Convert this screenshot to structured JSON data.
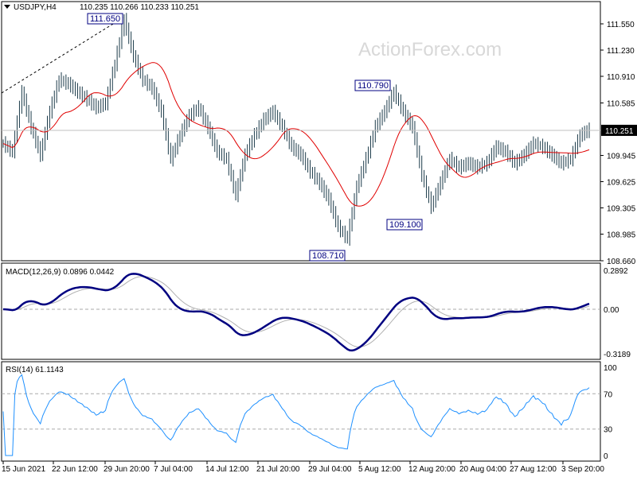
{
  "chart_data": [
    {
      "type": "ohlc",
      "title": "USDJPY,H4",
      "ohlc_header": "110.235 110.266 110.233 110.251",
      "current_price": "110.251",
      "yticks": [
        "111.550",
        "111.230",
        "110.910",
        "110.585",
        "109.945",
        "109.625",
        "109.305",
        "108.985",
        "108.660"
      ],
      "ylim": [
        108.66,
        111.55
      ],
      "close_samples": [
        110.09,
        109.99,
        110.72,
        110.29,
        109.95,
        110.48,
        110.87,
        110.82,
        110.72,
        110.63,
        110.53,
        110.58,
        111.06,
        111.6,
        111.16,
        110.87,
        110.77,
        110.48,
        109.9,
        110.19,
        110.43,
        110.53,
        110.29,
        109.99,
        109.9,
        109.46,
        109.95,
        110.19,
        110.38,
        110.48,
        110.29,
        110.05,
        109.95,
        109.75,
        109.61,
        109.41,
        109.07,
        108.93,
        109.56,
        109.9,
        110.29,
        110.48,
        110.72,
        110.48,
        110.29,
        109.71,
        109.32,
        109.61,
        109.9,
        109.8,
        109.85,
        109.8,
        109.85,
        110.05,
        109.99,
        109.85,
        109.95,
        110.09,
        110.05,
        109.95,
        109.85,
        109.9,
        110.19,
        110.26
      ],
      "annotations": [
        "111.650",
        "110.790",
        "109.100",
        "108.710"
      ],
      "watermark": "ActionForex.com",
      "colors": {
        "bars": "#1c3b4a",
        "ma": "#e00000",
        "trendline": "#000000"
      }
    },
    {
      "type": "line",
      "title": "MACD(12,26,9) 0.0896 0.0442",
      "yticks": [
        "0.2892",
        "0.00",
        "-0.3189"
      ],
      "ylim": [
        -0.3189,
        0.2892
      ],
      "colors": {
        "macd": "#000080",
        "signal": "#b0b0b0"
      }
    },
    {
      "type": "line",
      "title": "RSI(14) 61.1143",
      "yticks": [
        "100",
        "70",
        "30",
        "0"
      ],
      "ylim": [
        0,
        100
      ],
      "levels": [
        70,
        30
      ],
      "colors": {
        "rsi": "#1e90ff"
      }
    }
  ],
  "xticks": [
    "15 Jun 2021",
    "22 Jun 12:00",
    "29 Jun 20:00",
    "7 Jul 04:00",
    "14 Jul 12:00",
    "21 Jul 20:00",
    "29 Jul 04:00",
    "5 Aug 12:00",
    "12 Aug 20:00",
    "20 Aug 04:00",
    "27 Aug 12:00",
    "3 Sep 20:00"
  ]
}
